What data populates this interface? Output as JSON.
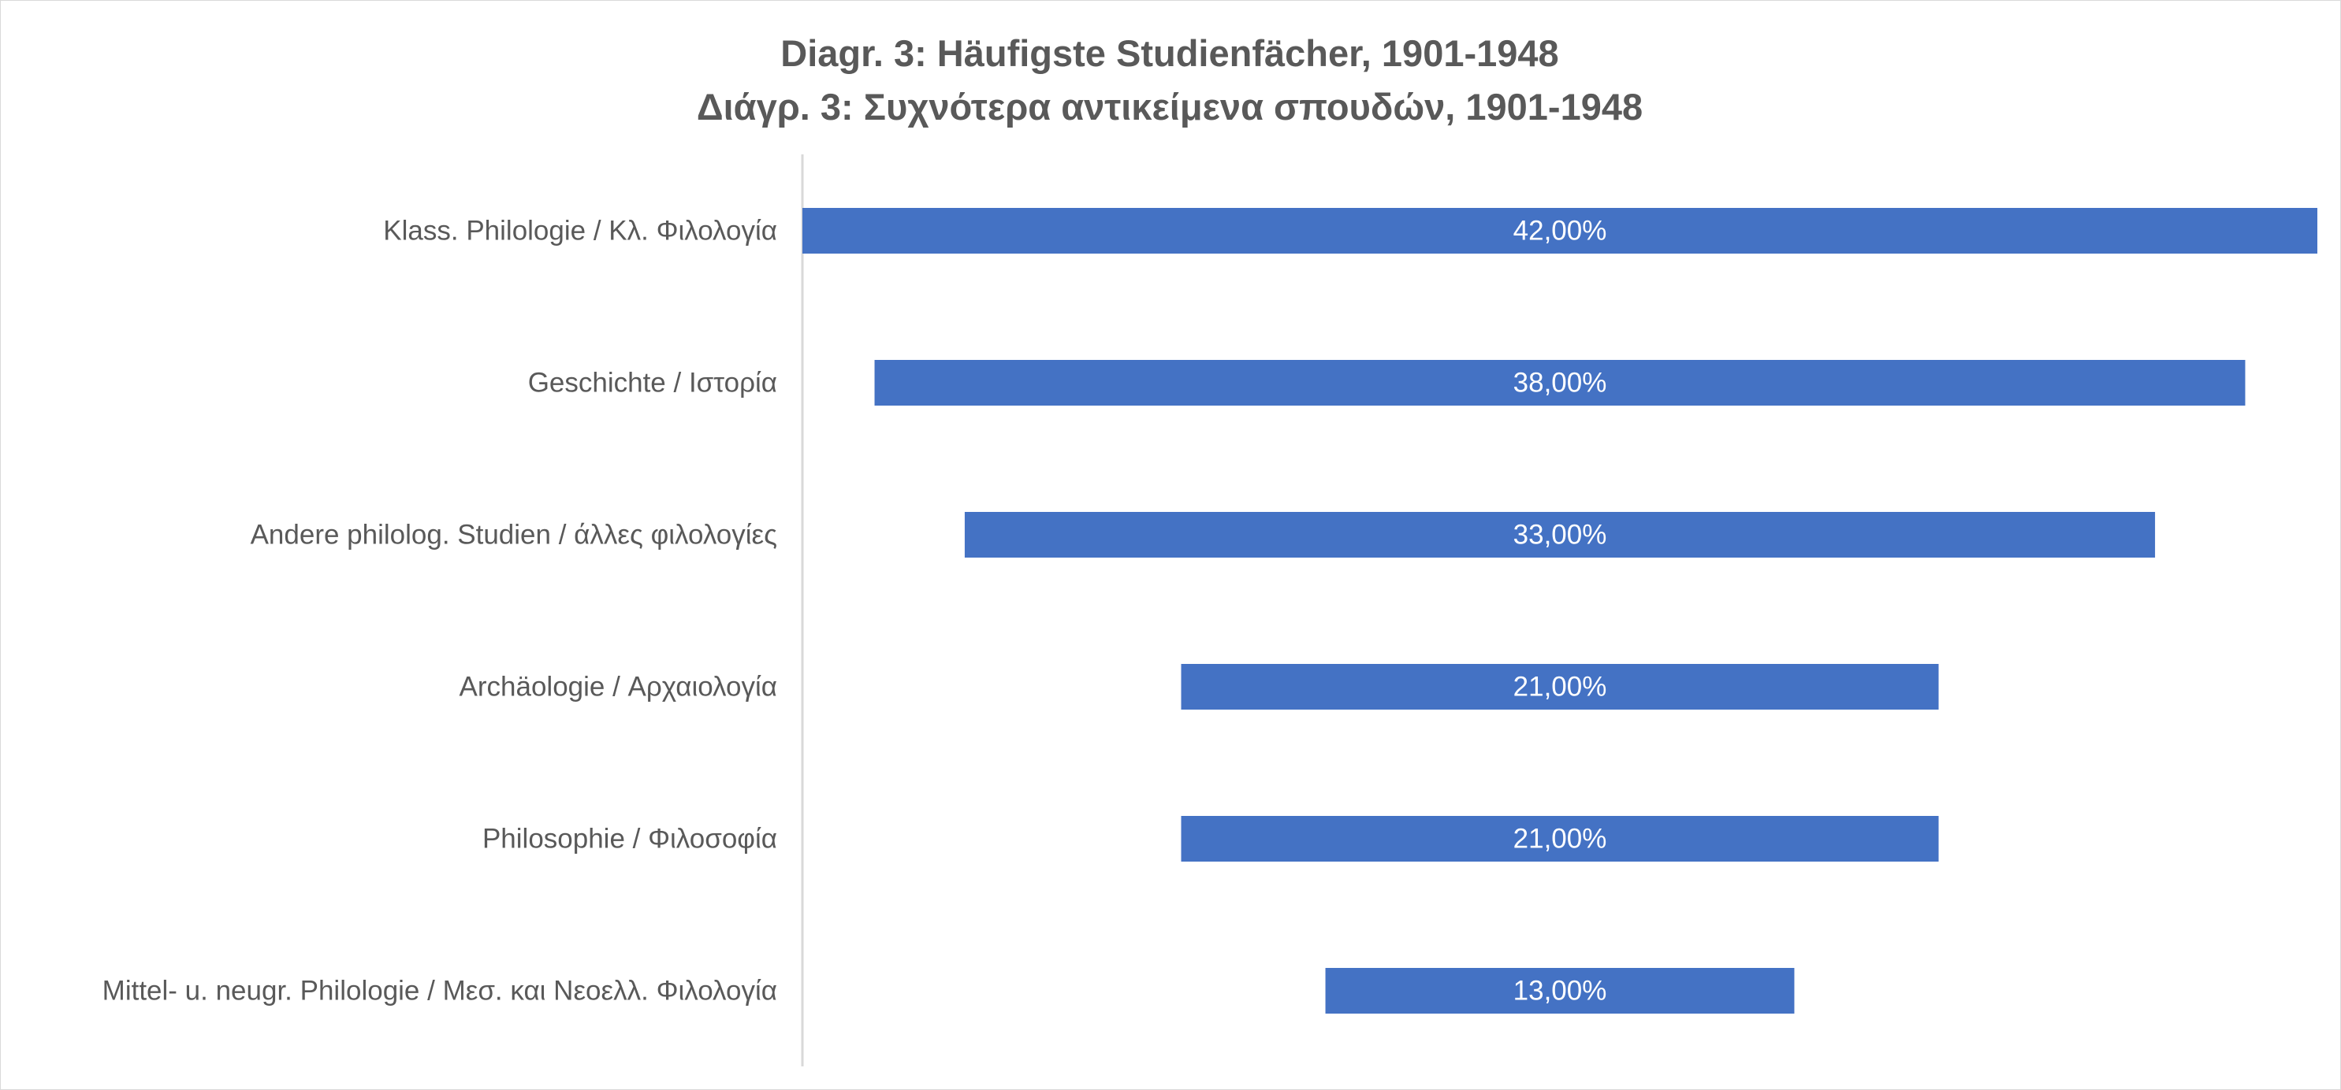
{
  "chart_data": {
    "type": "bar",
    "orientation": "horizontal-funnel",
    "title": "Diagr. 3: Häufigste Studienfächer, 1901-1948",
    "subtitle": "Διάγρ. 3: Συχνότερα αντικείμενα σπουδών, 1901-1948",
    "categories": [
      "Klass. Philologie / Κλ. Φιλολογία",
      "Geschichte / Ιστορία",
      "Andere philolog. Studien / άλλες φιλολογίες",
      "Archäologie / Αρχαιολογία",
      "Philosophie / Φιλοσοφία",
      "Mittel- u. neugr. Philologie / Μεσ. και Νεοελλ. Φιλολογία"
    ],
    "values": [
      42,
      38,
      33,
      21,
      21,
      13
    ],
    "data_labels": [
      "42,00%",
      "38,00%",
      "33,00%",
      "21,00%",
      "21,00%",
      "13,00%"
    ],
    "unit": "%",
    "bar_color": "#4472C4",
    "grid": false,
    "legend": "none"
  }
}
